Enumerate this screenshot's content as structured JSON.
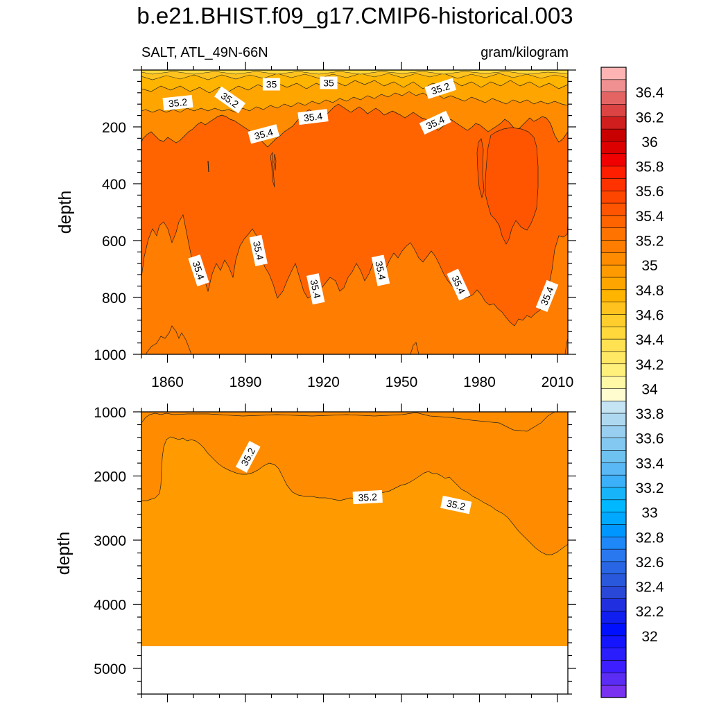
{
  "chart_data": [
    {
      "type": "contour",
      "panel": "upper",
      "title": "b.e21.BHIST.f09_g17.CMIP6-historical.003",
      "left_subtitle": "SALT, ATL_49N-66N",
      "right_subtitle": "gram/kilogram",
      "ylabel": "depth",
      "xlabel": "",
      "xlim": [
        1850,
        2014
      ],
      "ylim": [
        1000,
        0
      ],
      "xticks": [
        "1860",
        "1890",
        "1920",
        "1950",
        "1980",
        "2010"
      ],
      "yticks": [
        "200",
        "400",
        "600",
        "800",
        "1000"
      ],
      "contour_labels": [
        {
          "text": "35",
          "x": 1900,
          "y": 50
        },
        {
          "text": "35",
          "x": 1922,
          "y": 45
        },
        {
          "text": "35.2",
          "x": 1864,
          "y": 115
        },
        {
          "text": "35.2",
          "x": 1884,
          "y": 105
        },
        {
          "text": "35.2",
          "x": 1965,
          "y": 65
        },
        {
          "text": "35.4",
          "x": 1897,
          "y": 225
        },
        {
          "text": "35.4",
          "x": 1916,
          "y": 165
        },
        {
          "text": "35.4",
          "x": 1963,
          "y": 185
        },
        {
          "text": "35.4",
          "x": 1872,
          "y": 705
        },
        {
          "text": "35.4",
          "x": 1895,
          "y": 635
        },
        {
          "text": "35.4",
          "x": 1917,
          "y": 770
        },
        {
          "text": "35.4",
          "x": 1942,
          "y": 705
        },
        {
          "text": "35.4",
          "x": 1972,
          "y": 755
        },
        {
          "text": "35.4",
          "x": 2006,
          "y": 795
        }
      ],
      "approx_fields": [
        {
          "region": "surface 0-100 m",
          "value_range": [
            34.8,
            35.2
          ]
        },
        {
          "region": "100-250 m",
          "value": 35.3
        },
        {
          "region": "250-650 m core",
          "value": 35.45
        },
        {
          "region": "1985-2005, 220-530 m",
          "value": 35.55
        },
        {
          "region": "650-1000 m",
          "value": 35.35
        }
      ]
    },
    {
      "type": "contour",
      "panel": "lower",
      "ylabel": "depth",
      "xlabel": "",
      "xlim": [
        1850,
        2014
      ],
      "ylim": [
        5400,
        1000
      ],
      "yticks": [
        "1000",
        "2000",
        "3000",
        "4000",
        "5000"
      ],
      "contour_labels": [
        {
          "text": "35.2",
          "x": 1891,
          "y": 1700
        },
        {
          "text": "35.2",
          "x": 1937,
          "y": 2330
        },
        {
          "text": "35.2",
          "x": 1971,
          "y": 2450
        }
      ],
      "approx_fields": [
        {
          "region": "above 35.2 contour",
          "value": 35.3
        },
        {
          "region": "below 35.2 contour to 4620 m",
          "value": 35.1
        },
        {
          "region": "below 4620 m",
          "value": "missing"
        }
      ]
    }
  ],
  "colorbar": {
    "labels": [
      "36.4",
      "36.2",
      "36",
      "35.8",
      "35.6",
      "35.4",
      "35.2",
      "35",
      "34.8",
      "34.6",
      "34.4",
      "34.2",
      "34",
      "33.8",
      "33.6",
      "33.4",
      "33.2",
      "33",
      "32.8",
      "32.6",
      "32.4",
      "32.2",
      "32"
    ],
    "colors": [
      "#ffb4b4",
      "#f09090",
      "#e46464",
      "#dc4444",
      "#d01e1e",
      "#c80000",
      "#dc0000",
      "#f00000",
      "#ff1e00",
      "#ff3200",
      "#ff4600",
      "#ff5500",
      "#ff6400",
      "#ff7300",
      "#ff7d00",
      "#ff8c00",
      "#ff9b00",
      "#ffa500",
      "#ffb400",
      "#ffc21e",
      "#ffce2c",
      "#ffd83c",
      "#ffe152",
      "#ffe864",
      "#fff07c",
      "#fff8a6",
      "#fffcd0",
      "#c4e4f4",
      "#aed8f0",
      "#98cff0",
      "#82c8f0",
      "#6ec2f0",
      "#5ab8f4",
      "#3cb0f8",
      "#18b4fa",
      "#00b8ff",
      "#00a8ff",
      "#0096ff",
      "#1e88f8",
      "#2a78f0",
      "#2866e6",
      "#2a58dc",
      "#2a48d8",
      "#2030e0",
      "#101ef0",
      "#0010ff",
      "#1414ff",
      "#2a1eff",
      "#3c1eff",
      "#5a2cf4",
      "#7832f0"
    ]
  }
}
